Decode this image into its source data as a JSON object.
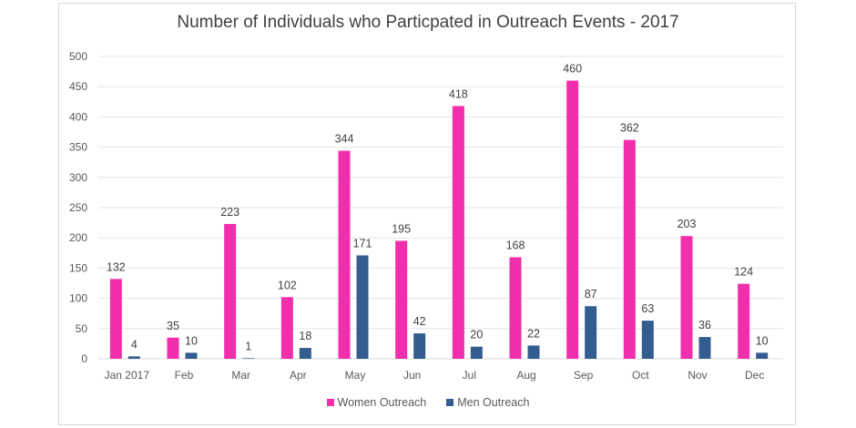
{
  "chart_data": {
    "type": "bar",
    "title": "Number of Individuals who Particpated in Outreach Events - 2017",
    "xlabel": "",
    "ylabel": "",
    "ylim": [
      0,
      500
    ],
    "yticks": [
      0,
      50,
      100,
      150,
      200,
      250,
      300,
      350,
      400,
      450,
      500
    ],
    "grid": true,
    "legend_position": "bottom",
    "categories": [
      "Jan 2017",
      "Feb",
      "Mar",
      "Apr",
      "May",
      "Jun",
      "Jul",
      "Aug",
      "Sep",
      "Oct",
      "Nov",
      "Dec"
    ],
    "series": [
      {
        "name": "Women Outreach",
        "color": "#f12eab",
        "values": [
          132,
          35,
          223,
          102,
          344,
          195,
          418,
          168,
          460,
          362,
          203,
          124
        ]
      },
      {
        "name": "Men Outreach",
        "color": "#335c8f",
        "values": [
          4,
          10,
          1,
          18,
          171,
          42,
          20,
          22,
          87,
          63,
          36,
          10
        ]
      }
    ]
  }
}
